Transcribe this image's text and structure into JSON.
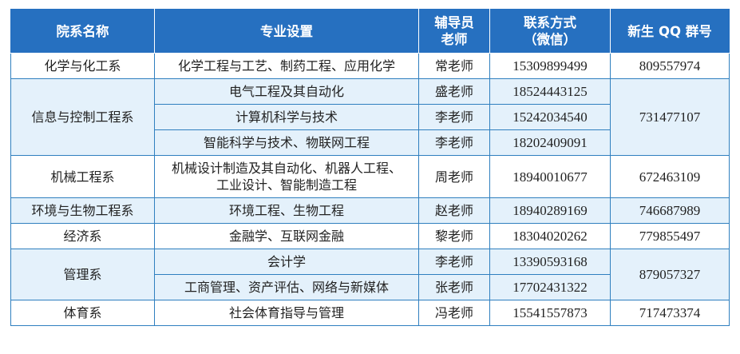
{
  "table": {
    "headers": {
      "dept": "院系名称",
      "major": "专业设置",
      "counselor_line1": "辅导员",
      "counselor_line2": "老师",
      "contact_line1": "联系方式",
      "contact_line2": "（微信）",
      "qq": "新生 QQ 群号"
    },
    "rows": [
      {
        "dept": "化学与化工系",
        "major": "化学工程与工艺、制药工程、应用化学",
        "teacher": "常老师",
        "phone": "15309899499",
        "qq": "809557974"
      },
      {
        "dept": "信息与控制工程系",
        "major": "电气工程及其自动化",
        "teacher": "盛老师",
        "phone": "18524443125",
        "qq": "731477107"
      },
      {
        "major": "计算机科学与技术",
        "teacher": "李老师",
        "phone": "15242034540"
      },
      {
        "major": "智能科学与技术、物联网工程",
        "teacher": "李老师",
        "phone": "18202409091"
      },
      {
        "dept": "机械工程系",
        "major_line1": "机械设计制造及其自动化、机器人工程、",
        "major_line2": "工业设计、智能制造工程",
        "teacher": "周老师",
        "phone": "18940010677",
        "qq": "672463109"
      },
      {
        "dept": "环境与生物工程系",
        "major": "环境工程、生物工程",
        "teacher": "赵老师",
        "phone": "18940289169",
        "qq": "746687989"
      },
      {
        "dept": "经济系",
        "major": "金融学、互联网金融",
        "teacher": "黎老师",
        "phone": "18304020262",
        "qq": "779855497"
      },
      {
        "dept": "管理系",
        "major": "会计学",
        "teacher": "李老师",
        "phone": "13390593168",
        "qq": "879057327"
      },
      {
        "major": "工商管理、资产评估、网络与新媒体",
        "teacher": "张老师",
        "phone": "17702431322"
      },
      {
        "dept": "体育系",
        "major": "社会体育指导与管理",
        "teacher": "冯老师",
        "phone": "15541557873",
        "qq": "717473374"
      }
    ]
  },
  "colors": {
    "header_bg": "#2670c0",
    "border": "#2f7fbf",
    "row_alt_bg": "#e4f1fb"
  }
}
